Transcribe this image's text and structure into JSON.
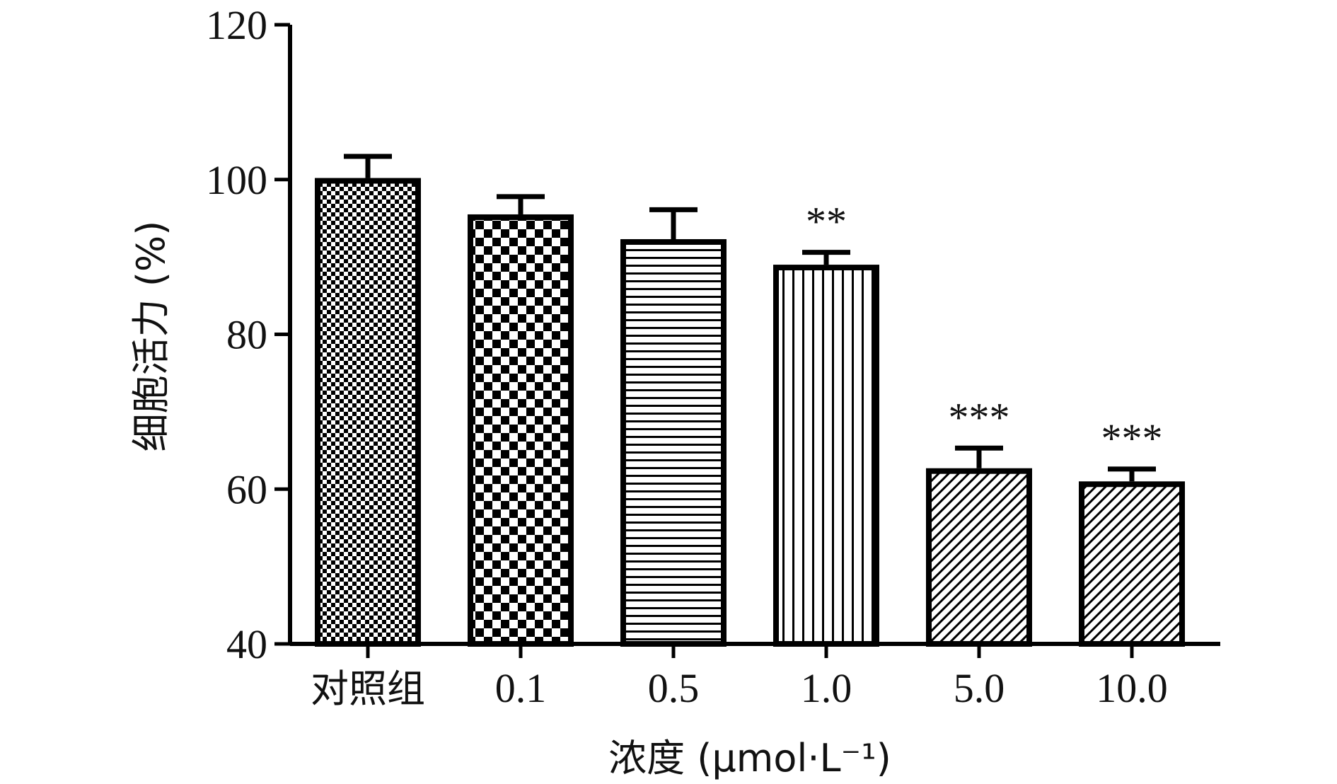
{
  "chart_data": {
    "type": "bar",
    "categories": [
      "对照组",
      "0.1",
      "0.5",
      "1.0",
      "5.0",
      "10.0"
    ],
    "values": [
      100.2,
      95.5,
      92.3,
      89.0,
      62.7,
      61.0
    ],
    "errors": [
      2.8,
      2.3,
      3.8,
      1.6,
      2.6,
      1.6
    ],
    "annotations": [
      "",
      "",
      "",
      "**",
      "***",
      "***"
    ],
    "patterns": [
      "fine-checker",
      "checker",
      "horizontal-lines",
      "vertical-lines",
      "diagonal-lines",
      "diagonal-lines"
    ],
    "xlabel": "浓度 (μmol·L⁻¹)",
    "ylabel": "细胞活力 (%)",
    "ylim": [
      40,
      120
    ],
    "yticks": [
      40,
      60,
      80,
      100,
      120
    ],
    "grid": false,
    "colors": {
      "bar_stroke": "#000000",
      "pattern_ink": "#000000",
      "background": "#ffffff"
    }
  }
}
